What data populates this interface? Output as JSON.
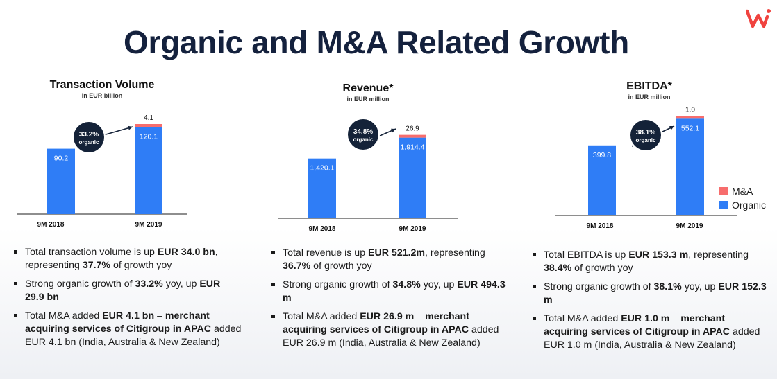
{
  "title": "Organic and M&A Related Growth",
  "colors": {
    "organic": "#2f7df6",
    "ma": "#f76d6d",
    "badge": "#142238",
    "title": "#14213d",
    "logo": "#f0433f"
  },
  "legend": {
    "ma": "M&A",
    "organic": "Organic"
  },
  "chart_data": [
    {
      "type": "bar",
      "title": "Transaction Volume",
      "subtitle": "in EUR billion",
      "categories": [
        "9M 2018",
        "9M 2019"
      ],
      "series": [
        {
          "name": "Organic",
          "values": [
            90.2,
            120.1
          ],
          "labels": [
            "90.2",
            "120.1"
          ]
        },
        {
          "name": "M&A",
          "values": [
            0,
            4.1
          ],
          "labels": [
            "",
            "4.1"
          ]
        }
      ],
      "badge": {
        "pct": "33.2%",
        "text": "organic"
      }
    },
    {
      "type": "bar",
      "title": "Revenue*",
      "subtitle": "in EUR million",
      "categories": [
        "9M 2018",
        "9M 2019"
      ],
      "series": [
        {
          "name": "Organic",
          "values": [
            1420.1,
            1914.4
          ],
          "labels": [
            "1,420.1",
            "1,914.4"
          ]
        },
        {
          "name": "M&A",
          "values": [
            0,
            26.9
          ],
          "labels": [
            "",
            "26.9"
          ]
        }
      ],
      "badge": {
        "pct": "34.8%",
        "text": "organic"
      }
    },
    {
      "type": "bar",
      "title": "EBITDA*",
      "subtitle": "in EUR million",
      "categories": [
        "9M 2018",
        "9M 2019"
      ],
      "series": [
        {
          "name": "Organic",
          "values": [
            399.8,
            552.1
          ],
          "labels": [
            "399.8",
            "552.1"
          ]
        },
        {
          "name": "M&A",
          "values": [
            0,
            1.0
          ],
          "labels": [
            "",
            "1.0"
          ]
        }
      ],
      "badge": {
        "pct": "38.1%",
        "text": "organic"
      }
    }
  ],
  "bullets": [
    [
      [
        {
          "t": "Total transaction volume is up "
        },
        {
          "t": "EUR 34.0 bn",
          "b": true
        },
        {
          "t": ", representing "
        },
        {
          "t": "37.7%",
          "b": true
        },
        {
          "t": " of growth yoy"
        }
      ],
      [
        {
          "t": "Strong organic growth of "
        },
        {
          "t": "33.2%",
          "b": true
        },
        {
          "t": " yoy, up "
        },
        {
          "t": "EUR 29.9 bn",
          "b": true
        }
      ],
      [
        {
          "t": "Total M&A added "
        },
        {
          "t": "EUR 4.1 bn",
          "b": true
        },
        {
          "t": " – "
        },
        {
          "t": "merchant acquiring services of Citigroup in APAC",
          "b": true
        },
        {
          "t": " added EUR 4.1 bn (India, Australia & New Zealand)"
        }
      ]
    ],
    [
      [
        {
          "t": "Total revenue is up "
        },
        {
          "t": "EUR 521.2m",
          "b": true
        },
        {
          "t": ", representing "
        },
        {
          "t": "36.7%",
          "b": true
        },
        {
          "t": " of growth yoy"
        }
      ],
      [
        {
          "t": "Strong organic growth of "
        },
        {
          "t": "34.8%",
          "b": true
        },
        {
          "t": " yoy, up "
        },
        {
          "t": "EUR 494.3 m",
          "b": true
        }
      ],
      [
        {
          "t": "Total M&A added "
        },
        {
          "t": "EUR 26.9 m",
          "b": true
        },
        {
          "t": " – "
        },
        {
          "t": "merchant acquiring services of Citigroup in APAC",
          "b": true
        },
        {
          "t": " added EUR 26.9 m (India, Australia & New Zealand)"
        }
      ]
    ],
    [
      [
        {
          "t": "Total EBITDA is up "
        },
        {
          "t": "EUR 153.3 m",
          "b": true
        },
        {
          "t": ", representing "
        },
        {
          "t": "38.4%",
          "b": true
        },
        {
          "t": " of growth yoy"
        }
      ],
      [
        {
          "t": "Strong organic growth of "
        },
        {
          "t": "38.1%",
          "b": true
        },
        {
          "t": " yoy, up "
        },
        {
          "t": "EUR 152.3 m",
          "b": true
        }
      ],
      [
        {
          "t": "Total M&A added "
        },
        {
          "t": "EUR 1.0 m",
          "b": true
        },
        {
          "t": " – "
        },
        {
          "t": "merchant acquiring services of Citigroup in APAC",
          "b": true
        },
        {
          "t": " added EUR 1.0 m (India, Australia & New Zealand)"
        }
      ]
    ]
  ]
}
